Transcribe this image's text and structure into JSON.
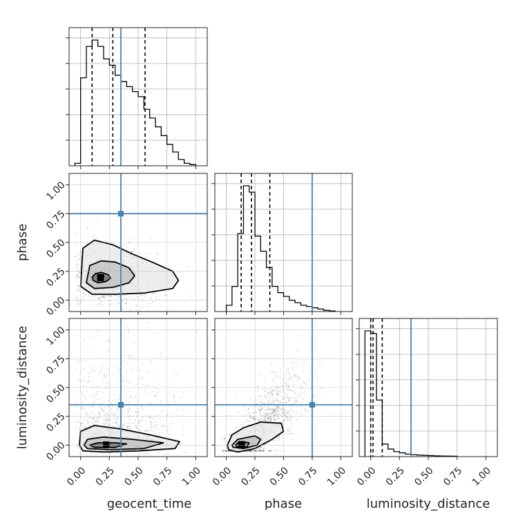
{
  "chart_data": {
    "type": "corner",
    "parameters": [
      "geocent_time",
      "phase",
      "luminosity_distance"
    ],
    "truths": {
      "geocent_time": 0.35,
      "phase": 0.75,
      "luminosity_distance": 0.35
    },
    "range": [
      -0.1,
      1.1
    ],
    "ticks": [
      0.0,
      0.25,
      0.5,
      0.75,
      1.0
    ],
    "tick_labels": [
      "0.00",
      "0.25",
      "0.50",
      "0.75",
      "1.00"
    ],
    "grid": true,
    "quantiles": {
      "geocent_time": [
        0.1,
        0.28,
        0.56
      ],
      "phase": [
        0.13,
        0.22,
        0.38
      ],
      "luminosity_distance": [
        0.0,
        0.02,
        0.1
      ]
    },
    "histograms": {
      "geocent_time": {
        "bin_edges": [
          -0.05,
          0.0,
          0.05,
          0.1,
          0.15,
          0.2,
          0.25,
          0.3,
          0.35,
          0.4,
          0.45,
          0.5,
          0.55,
          0.6,
          0.65,
          0.7,
          0.75,
          0.8,
          0.85,
          0.9,
          0.95,
          1.0
        ],
        "counts": [
          0.02,
          0.7,
          0.95,
          1.0,
          0.95,
          0.85,
          0.8,
          0.72,
          0.67,
          0.63,
          0.59,
          0.55,
          0.45,
          0.38,
          0.31,
          0.24,
          0.17,
          0.11,
          0.05,
          0.02,
          0.01
        ]
      },
      "phase": {
        "bin_edges": [
          0.0,
          0.05,
          0.1,
          0.15,
          0.2,
          0.25,
          0.3,
          0.35,
          0.4,
          0.45,
          0.5,
          0.55,
          0.6,
          0.65,
          0.7,
          0.75,
          0.8,
          0.85,
          0.9,
          0.95
        ],
        "counts": [
          0.05,
          0.2,
          0.62,
          1.0,
          0.95,
          0.6,
          0.48,
          0.35,
          0.2,
          0.15,
          0.12,
          0.09,
          0.07,
          0.05,
          0.04,
          0.03,
          0.02,
          0.01,
          0.005
        ]
      },
      "luminosity_distance": {
        "bin_edges": [
          -0.05,
          0.0,
          0.05,
          0.1,
          0.15,
          0.2,
          0.25,
          0.3,
          0.35,
          0.4,
          0.45,
          0.5,
          0.55,
          0.6,
          0.65,
          0.7,
          0.75
        ],
        "counts": [
          1.0,
          0.98,
          0.45,
          0.1,
          0.06,
          0.04,
          0.03,
          0.02,
          0.015,
          0.012,
          0.01,
          0.008,
          0.006,
          0.005,
          0.004,
          0.003
        ]
      }
    },
    "contours": {
      "phase_vs_geocent_time": [
        [
          [
            0.1,
            0.2
          ],
          [
            0.13,
            0.23
          ],
          [
            0.18,
            0.24
          ],
          [
            0.24,
            0.22
          ],
          [
            0.26,
            0.19
          ],
          [
            0.22,
            0.16
          ],
          [
            0.15,
            0.15
          ],
          [
            0.11,
            0.17
          ]
        ],
        [
          [
            0.05,
            0.15
          ],
          [
            0.08,
            0.3
          ],
          [
            0.18,
            0.34
          ],
          [
            0.3,
            0.33
          ],
          [
            0.42,
            0.28
          ],
          [
            0.47,
            0.21
          ],
          [
            0.42,
            0.15
          ],
          [
            0.28,
            0.11
          ],
          [
            0.12,
            0.1
          ]
        ],
        [
          [
            0.0,
            0.12
          ],
          [
            0.02,
            0.45
          ],
          [
            0.12,
            0.52
          ],
          [
            0.28,
            0.48
          ],
          [
            0.45,
            0.4
          ],
          [
            0.62,
            0.33
          ],
          [
            0.8,
            0.25
          ],
          [
            0.85,
            0.17
          ],
          [
            0.8,
            0.1
          ],
          [
            0.55,
            0.06
          ],
          [
            0.3,
            0.05
          ],
          [
            0.1,
            0.05
          ]
        ]
      ],
      "luminosity_distance_vs_geocent_time": [
        [
          [
            0.08,
            0.0
          ],
          [
            0.15,
            0.02
          ],
          [
            0.3,
            0.02
          ],
          [
            0.4,
            0.01
          ],
          [
            0.3,
            -0.02
          ],
          [
            0.12,
            -0.02
          ]
        ],
        [
          [
            0.03,
            0.0
          ],
          [
            0.06,
            0.05
          ],
          [
            0.2,
            0.07
          ],
          [
            0.45,
            0.05
          ],
          [
            0.72,
            0.02
          ],
          [
            0.55,
            -0.03
          ],
          [
            0.25,
            -0.04
          ],
          [
            0.06,
            -0.03
          ]
        ],
        [
          [
            -0.01,
            0.0
          ],
          [
            0.0,
            0.12
          ],
          [
            0.12,
            0.17
          ],
          [
            0.35,
            0.14
          ],
          [
            0.6,
            0.09
          ],
          [
            0.86,
            0.03
          ],
          [
            0.82,
            -0.03
          ],
          [
            0.5,
            -0.05
          ],
          [
            0.2,
            -0.06
          ],
          [
            0.02,
            -0.05
          ]
        ]
      ],
      "luminosity_distance_vs_phase": [
        [
          [
            0.08,
            0.0
          ],
          [
            0.1,
            0.02
          ],
          [
            0.14,
            0.03
          ],
          [
            0.2,
            0.02
          ],
          [
            0.18,
            -0.02
          ],
          [
            0.1,
            -0.02
          ]
        ],
        [
          [
            0.05,
            0.0
          ],
          [
            0.1,
            0.05
          ],
          [
            0.25,
            0.08
          ],
          [
            0.3,
            0.05
          ],
          [
            0.27,
            0.0
          ],
          [
            0.15,
            -0.03
          ],
          [
            0.06,
            -0.02
          ]
        ],
        [
          [
            0.01,
            0.0
          ],
          [
            0.05,
            0.09
          ],
          [
            0.15,
            0.15
          ],
          [
            0.3,
            0.2
          ],
          [
            0.48,
            0.19
          ],
          [
            0.5,
            0.12
          ],
          [
            0.4,
            0.05
          ],
          [
            0.25,
            -0.03
          ],
          [
            0.1,
            -0.06
          ],
          [
            0.02,
            -0.04
          ]
        ]
      ]
    }
  }
}
